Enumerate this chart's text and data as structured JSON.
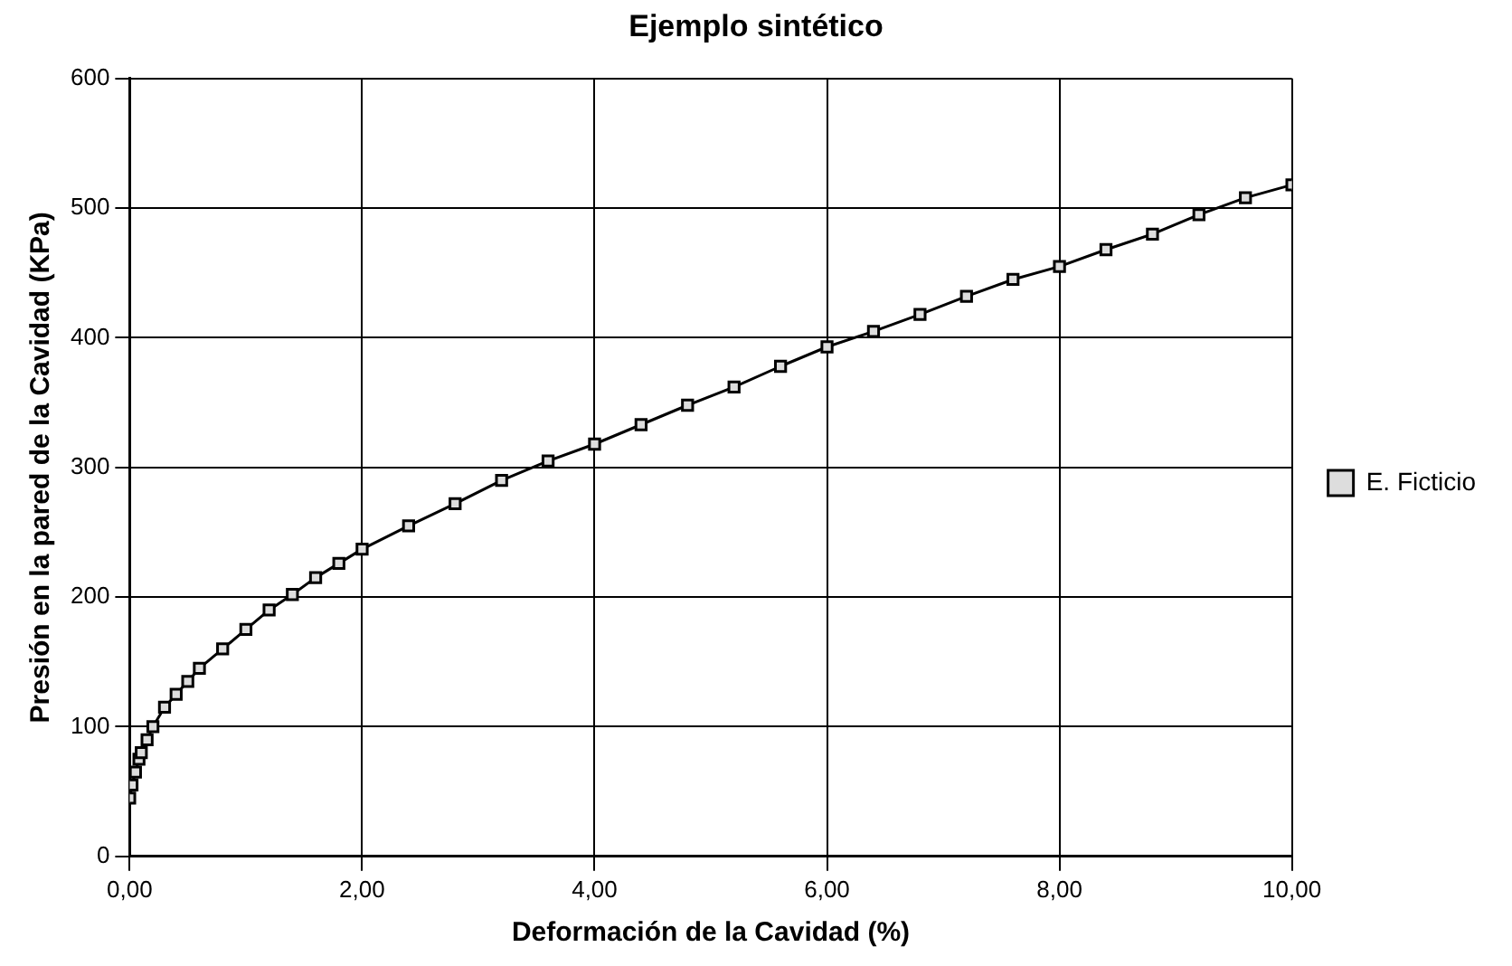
{
  "chart_data": {
    "type": "line",
    "title": "Ejemplo sintético",
    "xlabel": "Deformación de la Cavidad (%)",
    "ylabel": "Presión en la pared de la Cavidad (KPa)",
    "xlim": [
      0,
      10
    ],
    "xticks": [
      {
        "value": 0,
        "label": "0,00"
      },
      {
        "value": 2,
        "label": "2,00"
      },
      {
        "value": 4,
        "label": "4,00"
      },
      {
        "value": 6,
        "label": "6,00"
      },
      {
        "value": 8,
        "label": "8,00"
      },
      {
        "value": 10,
        "label": "10,00"
      }
    ],
    "ylim": [
      0,
      600
    ],
    "yticks": [
      0,
      100,
      200,
      300,
      400,
      500,
      600
    ],
    "grid": true,
    "legend": "right",
    "marker": "square",
    "line_style": "solid",
    "series": [
      {
        "name": "E. Ficticio",
        "color": "#000000",
        "x": [
          0,
          0.02,
          0.05,
          0.08,
          0.1,
          0.15,
          0.2,
          0.3,
          0.4,
          0.5,
          0.6,
          0.8,
          1.0,
          1.2,
          1.4,
          1.6,
          1.8,
          2.0,
          2.4,
          2.8,
          3.2,
          3.6,
          4.0,
          4.4,
          4.8,
          5.2,
          5.6,
          6.0,
          6.4,
          6.8,
          7.2,
          7.6,
          8.0,
          8.4,
          8.8,
          9.2,
          9.6,
          10.0
        ],
        "values": [
          45,
          55,
          65,
          75,
          80,
          90,
          100,
          115,
          125,
          135,
          145,
          160,
          175,
          190,
          202,
          215,
          226,
          237,
          255,
          272,
          290,
          305,
          318,
          333,
          348,
          362,
          378,
          393,
          405,
          418,
          432,
          445,
          455,
          468,
          480,
          495,
          508,
          518
        ]
      }
    ]
  }
}
